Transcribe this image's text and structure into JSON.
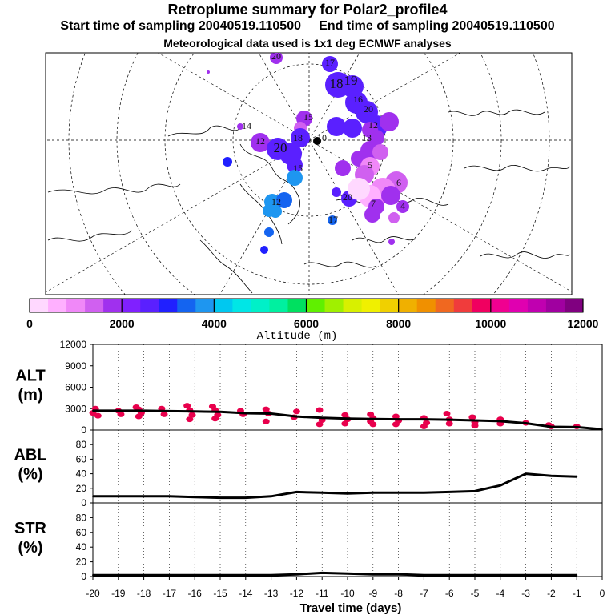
{
  "title": "Retroplume summary for Polar2_profile4",
  "start_time_label": "Start time of sampling 20040519.110500",
  "end_time_label": "End time of sampling 20040519.110500",
  "subtitle": "Meteorological data used is 1x1 deg ECMWF analyses",
  "colorbar": {
    "label": "Altitude (m)",
    "ticks": [
      "0",
      "2000",
      "4000",
      "6000",
      "8000",
      "10000",
      "12000"
    ],
    "colors": [
      "#ffd8ff",
      "#ffb0ff",
      "#f088f8",
      "#d060f0",
      "#a030ee",
      "#8020ff",
      "#5a20ff",
      "#2020ff",
      "#1464f0",
      "#1e96f0",
      "#00c8f0",
      "#00e6e6",
      "#00f0c8",
      "#00f0a0",
      "#00e060",
      "#60f000",
      "#a0f000",
      "#d8f000",
      "#f0f000",
      "#f0d000",
      "#f0b000",
      "#f09000",
      "#f06820",
      "#f03c3c",
      "#f00060",
      "#f00090",
      "#e000b0",
      "#c000b0",
      "#a000a0",
      "#800080"
    ]
  },
  "map_labels": [
    {
      "text": "20",
      "color": "#a030ee"
    },
    {
      "text": "17",
      "color": "#5a20ff"
    },
    {
      "text": "18",
      "color": "#5a20ff"
    },
    {
      "text": "19",
      "color": "#5a20ff"
    },
    {
      "text": "16",
      "color": "#5a20ff"
    },
    {
      "text": "20",
      "color": "#5a20ff"
    },
    {
      "text": "15",
      "color": "#a030ee"
    },
    {
      "text": "12",
      "color": "#a030ee"
    },
    {
      "text": "14",
      "color": "#a030ee"
    },
    {
      "text": "12",
      "color": "#a030ee"
    },
    {
      "text": "20",
      "color": "#5a20ff"
    },
    {
      "text": "18",
      "color": "#5a20ff"
    },
    {
      "text": "10",
      "color": "#a030ee"
    },
    {
      "text": "15",
      "color": "#5a20ff"
    },
    {
      "text": "12",
      "color": "#1e96f0"
    },
    {
      "text": "5",
      "color": "#1464f0"
    },
    {
      "text": "20",
      "color": "#5a20ff"
    },
    {
      "text": "6",
      "color": "#a030ee"
    },
    {
      "text": "7",
      "color": "#a030ee"
    },
    {
      "text": "4",
      "color": "#a030ee"
    },
    {
      "text": "17",
      "color": "#2020ff"
    },
    {
      "text": "13",
      "color": "#5a20ff"
    }
  ],
  "chart_data": [
    {
      "type": "scatter+line",
      "panel": "ALT",
      "ylabel": "ALT\n(m)",
      "ylim": [
        0,
        12000
      ],
      "yticks": [
        0,
        3000,
        6000,
        9000,
        12000
      ],
      "x": [
        -20,
        -19,
        -18,
        -17,
        -16,
        -15,
        -14,
        -13,
        -12,
        -11,
        -10,
        -9,
        -8,
        -7,
        -6,
        -5,
        -4,
        -3,
        -2,
        -1,
        0
      ],
      "line_values": [
        2700,
        2700,
        2700,
        2650,
        2600,
        2550,
        2350,
        2300,
        1900,
        1700,
        1600,
        1550,
        1500,
        1500,
        1450,
        1350,
        1250,
        950,
        450,
        400,
        100
      ],
      "point_color": "#e8004c",
      "points": [
        [
          -20.0,
          2400
        ],
        [
          -19.9,
          3000
        ],
        [
          -19.8,
          2000
        ],
        [
          -19.0,
          2700
        ],
        [
          -18.9,
          2200
        ],
        [
          -18.3,
          3200
        ],
        [
          -18.2,
          2900
        ],
        [
          -18.1,
          2400
        ],
        [
          -18.2,
          1900
        ],
        [
          -17.3,
          3000
        ],
        [
          -17.2,
          2200
        ],
        [
          -16.3,
          3400
        ],
        [
          -16.2,
          2800
        ],
        [
          -16.1,
          2100
        ],
        [
          -16.2,
          1500
        ],
        [
          -15.3,
          3300
        ],
        [
          -15.2,
          2800
        ],
        [
          -15.1,
          2100
        ],
        [
          -15.2,
          1600
        ],
        [
          -14.2,
          2700
        ],
        [
          -14.1,
          2200
        ],
        [
          -13.2,
          2900
        ],
        [
          -13.1,
          2300
        ],
        [
          -13.2,
          1200
        ],
        [
          -12.0,
          2600
        ],
        [
          -12.1,
          1800
        ],
        [
          -11.1,
          2800
        ],
        [
          -11.0,
          1400
        ],
        [
          -11.1,
          800
        ],
        [
          -10.1,
          2100
        ],
        [
          -10.0,
          1500
        ],
        [
          -10.1,
          900
        ],
        [
          -9.1,
          2200
        ],
        [
          -9.0,
          1700
        ],
        [
          -9.1,
          1200
        ],
        [
          -9.0,
          800
        ],
        [
          -8.1,
          1900
        ],
        [
          -8.0,
          1300
        ],
        [
          -8.1,
          800
        ],
        [
          -7.0,
          1700
        ],
        [
          -6.9,
          1000
        ],
        [
          -7.0,
          500
        ],
        [
          -6.1,
          2300
        ],
        [
          -6.0,
          1500
        ],
        [
          -6.0,
          900
        ],
        [
          -5.1,
          1800
        ],
        [
          -5.0,
          1100
        ],
        [
          -5.0,
          600
        ],
        [
          -4.0,
          1500
        ],
        [
          -4.0,
          900
        ],
        [
          -3.0,
          1000
        ],
        [
          -2.1,
          700
        ],
        [
          -2.0,
          500
        ],
        [
          -1.0,
          500
        ]
      ]
    },
    {
      "type": "line",
      "panel": "ABL",
      "ylabel": "ABL\n(%)",
      "ylim": [
        0,
        100
      ],
      "yticks": [
        0,
        20,
        40,
        60,
        80
      ],
      "x": [
        -20,
        -19,
        -18,
        -17,
        -16,
        -15,
        -14,
        -13,
        -12,
        -11,
        -10,
        -9,
        -8,
        -7,
        -6,
        -5,
        -4,
        -3,
        -2,
        -1
      ],
      "values": [
        9,
        9,
        9,
        9,
        8,
        7,
        7,
        9,
        15,
        14,
        13,
        14,
        14,
        14,
        15,
        16,
        24,
        40,
        37,
        36
      ]
    },
    {
      "type": "line",
      "panel": "STR",
      "ylabel": "STR\n(%)",
      "ylim": [
        0,
        100
      ],
      "yticks": [
        0,
        20,
        40,
        60,
        80
      ],
      "x": [
        -20,
        -19,
        -18,
        -17,
        -16,
        -15,
        -14,
        -13,
        -12,
        -11,
        -10,
        -9,
        -8,
        -7,
        -6,
        -5,
        -4,
        -3,
        -2,
        -1
      ],
      "values": [
        2,
        2,
        2,
        2,
        2,
        2,
        2,
        2,
        3,
        5,
        4,
        3,
        3,
        2,
        2,
        2,
        2,
        2,
        2,
        2
      ]
    }
  ],
  "xaxis": {
    "label": "Travel time (days)",
    "ticks": [
      "-20",
      "-19",
      "-18",
      "-17",
      "-16",
      "-15",
      "-14",
      "-13",
      "-12",
      "-11",
      "-10",
      "-9",
      "-8",
      "-7",
      "-6",
      "-5",
      "-4",
      "-3",
      "-2",
      "-1",
      "0"
    ]
  }
}
